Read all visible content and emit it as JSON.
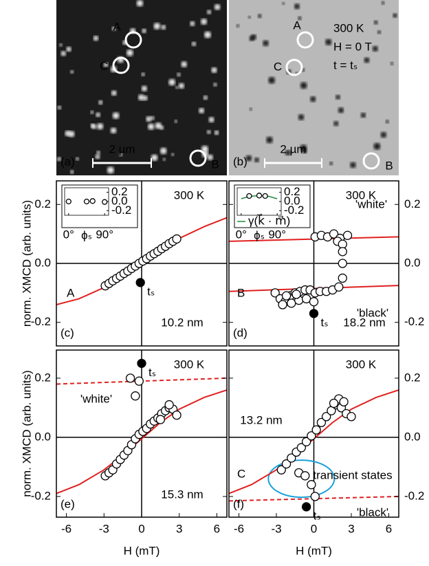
{
  "images": [
    {
      "label": "(a)",
      "scale": "2 µm",
      "markers": [
        "A",
        "C",
        "B"
      ]
    },
    {
      "label": "(b)",
      "scale": "2 µm",
      "markers": [
        "A",
        "C",
        "B"
      ],
      "conditions": [
        "300 K",
        "H = 0 T",
        "t = tₛ"
      ]
    }
  ],
  "chart_data": [
    {
      "type": "scatter",
      "panel": "(c)",
      "sample": "A",
      "thickness": "10.2 nm",
      "temperature": "300 K",
      "ylabel": "norm. XMCD (arb. units)",
      "yaxis": "left",
      "xlim": [
        -6.8,
        6.8
      ],
      "ylim": [
        -0.28,
        0.28
      ],
      "yticks": [
        0.2,
        {
          "value": 0,
          "label": "0.0"
        },
        -0.2
      ],
      "series": [
        {
          "kind": "line",
          "color": "#e0201f",
          "x": [
            -6.8,
            -5,
            -3,
            -1.5,
            0,
            1.5,
            3,
            5,
            6.8
          ],
          "values": [
            -0.14,
            -0.12,
            -0.082,
            -0.045,
            0,
            0.045,
            0.085,
            0.125,
            0.155
          ]
        },
        {
          "kind": "open",
          "x": [
            -2.9,
            -2.6,
            -2.3,
            -2.0,
            -1.7,
            -1.4,
            -1.1,
            -0.8,
            -0.5,
            -0.2,
            0.1,
            0.4,
            0.7,
            1.0,
            1.3,
            1.6,
            1.9,
            2.2,
            2.5,
            2.8
          ],
          "values": [
            -0.076,
            -0.068,
            -0.059,
            -0.051,
            -0.043,
            -0.034,
            -0.026,
            -0.017,
            -0.009,
            0.0,
            0.008,
            0.016,
            0.025,
            0.033,
            0.041,
            0.05,
            0.058,
            0.067,
            0.075,
            0.083
          ]
        },
        {
          "kind": "filled",
          "label": "tₛ",
          "x": [
            -0.1
          ],
          "values": [
            -0.065
          ]
        }
      ],
      "inset": {
        "xlabel": "ϕₛ",
        "xlim": [
          -10,
          100
        ],
        "ylim": [
          -0.3,
          0.3
        ],
        "xticks": [
          {
            "value": 0,
            "label": "0°"
          },
          {
            "value": 90,
            "label": "90°"
          }
        ],
        "yticks": [
          0.2,
          {
            "value": 0,
            "label": "0.0"
          },
          -0.2
        ],
        "series": [
          {
            "kind": "open",
            "x": [
              0,
              45,
              60,
              90
            ],
            "values": [
              0,
              0,
              0.01,
              -0.01
            ]
          }
        ]
      }
    },
    {
      "type": "scatter",
      "panel": "(d)",
      "sample": "B",
      "thickness": "18.2 nm",
      "temperature": "300 K",
      "yaxis": "right",
      "xlim": [
        -6.8,
        6.8
      ],
      "ylim": [
        -0.28,
        0.28
      ],
      "yticks": [
        0.2,
        {
          "value": 0,
          "label": "0.0"
        },
        -0.2
      ],
      "series": [
        {
          "kind": "line",
          "name": "'white'",
          "color": "#e0201f",
          "x": [
            -6.8,
            6.8
          ],
          "values": [
            0.075,
            0.09
          ]
        },
        {
          "kind": "line",
          "name": "'black'",
          "color": "#e0201f",
          "x": [
            -6.8,
            6.8
          ],
          "values": [
            -0.095,
            -0.075
          ]
        },
        {
          "kind": "open",
          "x": [
            0.1,
            0.6,
            1.1,
            1.6,
            2.1,
            2.7,
            1.9,
            2.3,
            2.3,
            2.3,
            2.3,
            -3.1,
            -2.7,
            -2.3,
            -1.9,
            -1.5,
            -1.1,
            -0.7,
            -0.3,
            0.1,
            0.5,
            1.0,
            1.5,
            2.0,
            -2.5,
            -1.8,
            -1.2,
            -0.6,
            0,
            -2.2,
            -1.4
          ],
          "values": [
            0.09,
            0.095,
            0.09,
            0.1,
            0.085,
            0.095,
            0.075,
            0.065,
            0.04,
            0.0,
            -0.05,
            -0.1,
            -0.12,
            -0.13,
            -0.11,
            -0.1,
            -0.095,
            -0.09,
            -0.09,
            -0.1,
            -0.095,
            -0.095,
            -0.09,
            -0.08,
            -0.14,
            -0.135,
            -0.125,
            -0.12,
            -0.13,
            -0.11,
            -0.105
          ]
        },
        {
          "kind": "filled",
          "label": "tₛ",
          "x": [
            0
          ],
          "values": [
            -0.17
          ]
        }
      ],
      "inset": {
        "xlabel": "ϕₛ",
        "xlim": [
          -10,
          100
        ],
        "ylim": [
          -0.3,
          0.3
        ],
        "xticks": [
          {
            "value": 0,
            "label": "0°"
          },
          {
            "value": 90,
            "label": "90°"
          }
        ],
        "yticks": [
          0.2,
          {
            "value": 0,
            "label": "0.0"
          },
          -0.2
        ],
        "series": [
          {
            "kind": "line",
            "name": "γ(k⃗ · m⃗)",
            "color": "#1f8a3a",
            "x": [
              0,
              20,
              45,
              70,
              90
            ],
            "values": [
              0.06,
              0.11,
              0.13,
              0.11,
              0.06
            ]
          },
          {
            "kind": "open",
            "x": [
              20,
              45,
              60
            ],
            "values": [
              0.12,
              0.13,
              0.12
            ]
          }
        ]
      }
    },
    {
      "type": "scatter",
      "panel": "(e)",
      "thickness": "15.3 nm",
      "temperature": "300 K",
      "ylabel": "norm. XMCD (arb. units)",
      "xlabel": "H (mT)",
      "yaxis": "left",
      "xlim": [
        -6.8,
        6.8
      ],
      "ylim": [
        -0.27,
        0.295
      ],
      "yticks": [
        0.2,
        {
          "value": 0,
          "label": "0.0"
        },
        -0.2
      ],
      "xticks": [
        -6,
        -3,
        0,
        3,
        6
      ],
      "series": [
        {
          "kind": "line",
          "color": "#e0201f",
          "x": [
            -6.8,
            -5,
            -3,
            -1.5,
            0,
            1.5,
            3,
            5,
            6.8
          ],
          "values": [
            -0.19,
            -0.16,
            -0.11,
            -0.06,
            -0.005,
            0.05,
            0.095,
            0.135,
            0.16
          ]
        },
        {
          "kind": "dashed",
          "name": "'white'",
          "color": "#e0201f",
          "x": [
            -6.8,
            6.8
          ],
          "values": [
            0.18,
            0.2
          ]
        },
        {
          "kind": "open",
          "x": [
            -2.9,
            -2.6,
            -2.3,
            -2.0,
            -1.7,
            -1.4,
            -1.1,
            -0.8,
            -0.5,
            -0.2,
            0.1,
            0.4,
            0.7,
            1.0,
            1.3,
            1.6,
            1.9,
            2.2,
            2.5,
            2.8,
            -0.9,
            -0.5,
            -0.2,
            1.5,
            2.2
          ],
          "values": [
            -0.13,
            -0.12,
            -0.11,
            -0.09,
            -0.075,
            -0.06,
            -0.045,
            -0.025,
            -0.005,
            0.01,
            0.02,
            0.03,
            0.045,
            0.055,
            0.065,
            0.08,
            0.09,
            0.1,
            0.095,
            0.075,
            0.2,
            0.14,
            0.19,
            0.06,
            0.11
          ]
        },
        {
          "kind": "filled",
          "label": "tₛ",
          "x": [
            0
          ],
          "values": [
            0.25
          ]
        }
      ]
    },
    {
      "type": "scatter",
      "panel": "(f)",
      "sample": "C",
      "thickness": "13.2 nm",
      "temperature": "300 K",
      "xlabel": "H (mT)",
      "yaxis": "right",
      "annotation": "transient states",
      "xlim": [
        -6.8,
        6.8
      ],
      "ylim": [
        -0.27,
        0.295
      ],
      "yticks": [
        0.2,
        {
          "value": 0,
          "label": "0.0"
        },
        -0.2
      ],
      "xticks": [
        -6,
        -3,
        0,
        3,
        6
      ],
      "series": [
        {
          "kind": "line",
          "color": "#e0201f",
          "x": [
            -6.8,
            -5,
            -3,
            -1.5,
            0,
            1.5,
            3,
            5,
            6.8
          ],
          "values": [
            -0.19,
            -0.16,
            -0.11,
            -0.06,
            -0.005,
            0.05,
            0.095,
            0.135,
            0.16
          ]
        },
        {
          "kind": "dashed",
          "name": "'black'",
          "color": "#e0201f",
          "x": [
            -6.8,
            6.8
          ],
          "values": [
            -0.215,
            -0.2
          ]
        },
        {
          "kind": "open",
          "x": [
            -2.6,
            -2.2,
            -1.8,
            -1.4,
            -1.0,
            -0.6,
            -0.2,
            0.2,
            0.6,
            1.0,
            1.4,
            1.8,
            2.2,
            2.6,
            3.0,
            2.0,
            2.4,
            1.6,
            -1.2,
            -0.7,
            -0.2,
            0.1
          ],
          "values": [
            -0.11,
            -0.09,
            -0.07,
            -0.05,
            -0.035,
            -0.015,
            0.005,
            0.025,
            0.05,
            0.07,
            0.09,
            0.11,
            0.1,
            0.08,
            0.07,
            0.13,
            0.12,
            0.115,
            -0.12,
            -0.13,
            -0.16,
            -0.2
          ]
        },
        {
          "kind": "filled",
          "label": "tₛ",
          "x": [
            -0.6
          ],
          "values": [
            -0.235
          ]
        }
      ]
    }
  ]
}
